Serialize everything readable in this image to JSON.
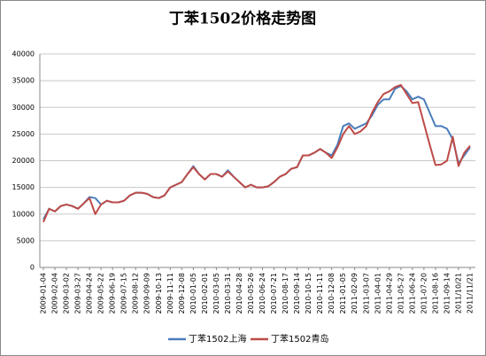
{
  "chart_data": {
    "type": "line",
    "title": "丁苯1502价格走势图",
    "categories": [
      "2009-01-04",
      null,
      "2009-02-04",
      null,
      "2009-03-02",
      null,
      "2009-03-27",
      null,
      "2009-04-24",
      null,
      "2009-05-22",
      null,
      "2009-06-19",
      null,
      "2009-07-15",
      null,
      "2009-08-12",
      null,
      "2009-09-09",
      null,
      "2009-10-13",
      null,
      "2009-11-11",
      null,
      "2009-12-08",
      null,
      "2010-01-05",
      null,
      "2010-02-01",
      null,
      "2010-03-05",
      null,
      "2010-03-31",
      null,
      "2010-04-28",
      null,
      "2010-05-26",
      null,
      "2010-06-24",
      null,
      "2010-07-21",
      null,
      "2010-08-17",
      null,
      "2010-09-14",
      null,
      "2010-10-15",
      null,
      "2010-11-11",
      null,
      "2010-12-08",
      null,
      "2011-01-05",
      null,
      "2011-02-09",
      null,
      "2011-03-07",
      null,
      "2011-04-01",
      null,
      "2011-04-29",
      null,
      "2011-05-27",
      null,
      "2011-06-24",
      null,
      "2011-07-20",
      null,
      "2011-08-16",
      null,
      "2011-09-14",
      null,
      "2011/10/21",
      null,
      "2011/11/21"
    ],
    "series": [
      {
        "name": "丁苯1502上海",
        "color": "#4a7ebb",
        "values": [
          9000,
          11000,
          10500,
          11500,
          11800,
          11500,
          11000,
          12000,
          13200,
          13000,
          11800,
          12500,
          12200,
          12200,
          12500,
          13500,
          14000,
          14000,
          13800,
          13200,
          13000,
          13500,
          15000,
          15500,
          16000,
          17500,
          19000,
          17500,
          16500,
          17500,
          17500,
          17000,
          18200,
          17000,
          16000,
          15000,
          15500,
          15000,
          15000,
          15200,
          16000,
          17000,
          17500,
          18500,
          18800,
          21000,
          21000,
          21500,
          22200,
          21500,
          21000,
          23000,
          26500,
          27000,
          26000,
          26500,
          27000,
          28500,
          30500,
          31500,
          31500,
          33500,
          34000,
          33000,
          31500,
          32000,
          31500,
          29000,
          26500,
          26500,
          26000,
          24000,
          19500,
          21000,
          22500
        ]
      },
      {
        "name": "丁苯1502青岛",
        "color": "#be4b48",
        "values": [
          8500,
          11000,
          10500,
          11500,
          11800,
          11500,
          11000,
          12000,
          13000,
          10000,
          11800,
          12500,
          12200,
          12200,
          12500,
          13500,
          14000,
          14000,
          13800,
          13200,
          13000,
          13500,
          15000,
          15500,
          16000,
          17500,
          18800,
          17500,
          16500,
          17500,
          17500,
          17000,
          18000,
          17000,
          16000,
          15000,
          15500,
          15000,
          15000,
          15200,
          16000,
          17000,
          17500,
          18500,
          18800,
          21000,
          21000,
          21500,
          22200,
          21500,
          20500,
          22500,
          25000,
          26500,
          25000,
          25500,
          26500,
          29000,
          31000,
          32500,
          33000,
          33800,
          34200,
          32500,
          30800,
          31000,
          27000,
          23000,
          19200,
          19300,
          20000,
          24500,
          19000,
          21500,
          22800
        ]
      }
    ],
    "ylim": [
      0,
      40000
    ],
    "yticks": [
      0,
      5000,
      10000,
      15000,
      20000,
      25000,
      30000,
      35000,
      40000
    ],
    "grid": true,
    "legend": "bottom"
  }
}
